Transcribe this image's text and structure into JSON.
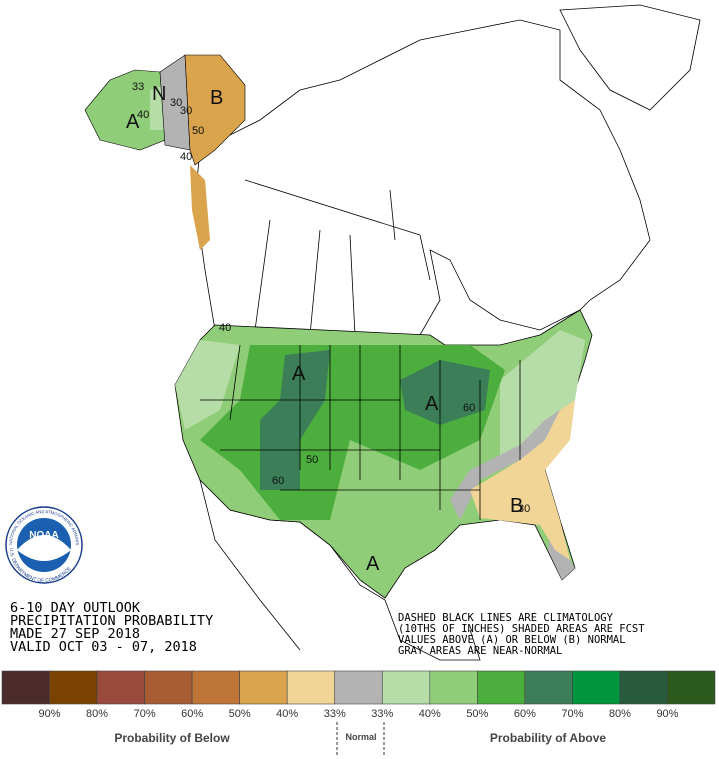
{
  "map_labels": {
    "A": [
      "A",
      "A",
      "A",
      "A"
    ],
    "B": [
      "B",
      "B"
    ],
    "N": "N",
    "contours": [
      "33",
      "40",
      "30",
      "30",
      "50",
      "40",
      "40",
      "60",
      "50",
      "60",
      "30"
    ]
  },
  "logo": {
    "name": "NOAA",
    "ring_top": "NATIONAL OCEANIC AND ATMOSPHERIC ADMINISTRATION",
    "ring_bottom": "U.S. DEPARTMENT OF COMMERCE"
  },
  "header": [
    "6-10 DAY OUTLOOK",
    "PRECIPITATION PROBABILITY",
    "MADE  27 SEP 2018",
    "VALID  OCT 03 - 07, 2018"
  ],
  "notes": [
    "DASHED BLACK LINES ARE CLIMATOLOGY",
    "(10THS OF INCHES) SHADED AREAS ARE FCST",
    "VALUES ABOVE (A) OR BELOW (B) NORMAL",
    "GRAY AREAS ARE NEAR-NORMAL"
  ],
  "legend": {
    "colors": [
      "#4b2b2b",
      "#7a4200",
      "#9a4a3c",
      "#a85c34",
      "#bf7538",
      "#d9a44c",
      "#f1d596",
      "#b3b3b3",
      "#b6dca7",
      "#90cd79",
      "#4cae3d",
      "#3b7e58",
      "#00963d",
      "#285a3c",
      "#2c5a1d"
    ],
    "labels": [
      "90%",
      "80%",
      "70%",
      "60%",
      "50%",
      "40%",
      "33%",
      "33%",
      "40%",
      "50%",
      "60%",
      "70%",
      "80%",
      "90%"
    ],
    "below": "Probability of Below",
    "normal": "Normal",
    "above": "Probability of Above"
  }
}
